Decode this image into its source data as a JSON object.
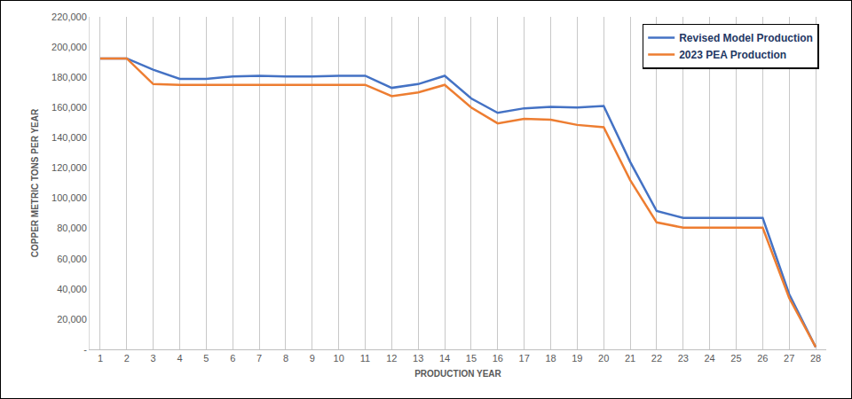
{
  "chart_data": {
    "type": "line",
    "x_label": "PRODUCTION YEAR",
    "y_label": "COPPER METRIC TONS PER YEAR",
    "categories": [
      "1",
      "2",
      "3",
      "4",
      "5",
      "6",
      "7",
      "8",
      "9",
      "10",
      "11",
      "12",
      "13",
      "14",
      "15",
      "16",
      "17",
      "18",
      "19",
      "20",
      "21",
      "22",
      "23",
      "24",
      "25",
      "26",
      "27",
      "28"
    ],
    "series": [
      {
        "name": "Revised Model Production",
        "color": "#4472c4",
        "values": [
          192500,
          192500,
          185000,
          179000,
          179000,
          180500,
          181000,
          180500,
          180500,
          181000,
          181000,
          173000,
          175500,
          181000,
          166000,
          156500,
          159500,
          160500,
          160000,
          161000,
          124000,
          91500,
          87000,
          87000,
          87000,
          87000,
          36500,
          1500
        ]
      },
      {
        "name": "2023 PEA Production",
        "color": "#ed7d31",
        "values": [
          192500,
          192500,
          175500,
          175000,
          175000,
          175000,
          175000,
          175000,
          175000,
          175000,
          175000,
          167500,
          170000,
          175000,
          160000,
          149500,
          152500,
          152000,
          148500,
          147000,
          112000,
          84000,
          80500,
          80500,
          80500,
          80500,
          34000,
          1500
        ]
      }
    ],
    "ylim": [
      0,
      220000
    ],
    "yticks": [
      {
        "value": 0,
        "label": "-"
      },
      {
        "value": 20000,
        "label": "20,000"
      },
      {
        "value": 40000,
        "label": "40,000"
      },
      {
        "value": 60000,
        "label": "60,000"
      },
      {
        "value": 80000,
        "label": "80,000"
      },
      {
        "value": 100000,
        "label": "100,000"
      },
      {
        "value": 120000,
        "label": "120,000"
      },
      {
        "value": 140000,
        "label": "140,000"
      },
      {
        "value": 160000,
        "label": "160,000"
      },
      {
        "value": 180000,
        "label": "180,000"
      },
      {
        "value": 200000,
        "label": "200,000"
      },
      {
        "value": 220000,
        "label": "220,000"
      }
    ],
    "grid": "x",
    "legend": "top right"
  }
}
